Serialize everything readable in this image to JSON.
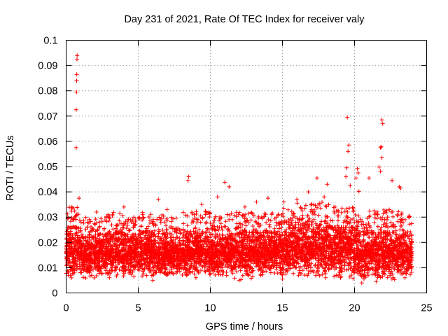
{
  "chart_data": {
    "type": "scatter",
    "title": "Day 231 of 2021, Rate Of TEC Index for receiver valy",
    "xlabel": "GPS time / hours",
    "ylabel": "ROTI / TECUs",
    "xlim": [
      0,
      25
    ],
    "ylim": [
      0,
      0.1
    ],
    "xticks": [
      0,
      5,
      10,
      15,
      20,
      25
    ],
    "yticks": [
      0,
      0.01,
      0.02,
      0.03,
      0.04,
      0.05,
      0.06,
      0.07,
      0.08,
      0.09,
      0.1
    ],
    "xtick_labels": [
      "0",
      "5",
      "10",
      "15",
      "20",
      "25"
    ],
    "ytick_labels": [
      "0",
      "0.01",
      "0.02",
      "0.03",
      "0.04",
      "0.05",
      "0.06",
      "0.07",
      "0.08",
      "0.09",
      "0.1"
    ],
    "grid": true,
    "marker": "+",
    "color": "#ff0000",
    "series": [
      {
        "name": "ROTI",
        "points": [
          [
            0.7,
            0.0575
          ],
          [
            0.7,
            0.0725
          ],
          [
            0.72,
            0.0795
          ],
          [
            0.73,
            0.084
          ],
          [
            0.74,
            0.0865
          ],
          [
            0.75,
            0.0925
          ],
          [
            0.76,
            0.094
          ],
          [
            0.9,
            0.0375
          ],
          [
            0.4,
            0.034
          ],
          [
            8.5,
            0.046
          ],
          [
            8.45,
            0.0445
          ],
          [
            11.0,
            0.0438
          ],
          [
            11.3,
            0.042
          ],
          [
            10.5,
            0.038
          ],
          [
            17.4,
            0.0455
          ],
          [
            18.1,
            0.043
          ],
          [
            19.5,
            0.0695
          ],
          [
            19.6,
            0.0585
          ],
          [
            19.55,
            0.056
          ],
          [
            19.45,
            0.0495
          ],
          [
            19.4,
            0.046
          ],
          [
            19.7,
            0.0425
          ],
          [
            20.2,
            0.0492
          ],
          [
            20.25,
            0.0475
          ],
          [
            20.1,
            0.0455
          ],
          [
            20.3,
            0.0402
          ],
          [
            21.9,
            0.0685
          ],
          [
            21.95,
            0.067
          ],
          [
            21.85,
            0.0578
          ],
          [
            21.8,
            0.0575
          ],
          [
            21.9,
            0.0535
          ],
          [
            21.7,
            0.0498
          ],
          [
            21.8,
            0.0482
          ],
          [
            21.0,
            0.0455
          ],
          [
            22.6,
            0.0445
          ],
          [
            23.1,
            0.042
          ],
          [
            23.2,
            0.0415
          ],
          [
            6.4,
            0.037
          ],
          [
            14.0,
            0.0375
          ],
          [
            15.1,
            0.036
          ],
          [
            16.0,
            0.037
          ],
          [
            13.2,
            0.036
          ],
          [
            4.0,
            0.034
          ],
          [
            2.1,
            0.032
          ],
          [
            7.0,
            0.033
          ],
          [
            12.4,
            0.034
          ],
          [
            9.4,
            0.035
          ],
          [
            5.3,
            0.031
          ],
          [
            17.9,
            0.038
          ],
          [
            16.8,
            0.04
          ],
          [
            0.3,
            0.007
          ],
          [
            3.0,
            0.006
          ],
          [
            6.0,
            0.005
          ],
          [
            9.0,
            0.006
          ],
          [
            12.0,
            0.005
          ],
          [
            15.0,
            0.0055
          ],
          [
            18.0,
            0.006
          ],
          [
            20.5,
            0.004
          ],
          [
            21.5,
            0.0045
          ],
          [
            23.5,
            0.006
          ]
        ],
        "bands": [
          [
            0.0,
            1.0,
            0.005,
            0.026,
            0.034
          ],
          [
            1.0,
            2.0,
            0.005,
            0.022,
            0.03
          ],
          [
            2.0,
            3.0,
            0.006,
            0.023,
            0.031
          ],
          [
            3.0,
            4.0,
            0.006,
            0.024,
            0.032
          ],
          [
            4.0,
            5.0,
            0.006,
            0.023,
            0.03
          ],
          [
            5.0,
            6.0,
            0.006,
            0.024,
            0.032
          ],
          [
            6.0,
            7.0,
            0.0055,
            0.023,
            0.031
          ],
          [
            7.0,
            8.0,
            0.006,
            0.022,
            0.03
          ],
          [
            8.0,
            9.0,
            0.006,
            0.023,
            0.032
          ],
          [
            9.0,
            10.0,
            0.006,
            0.024,
            0.033
          ],
          [
            10.0,
            11.0,
            0.006,
            0.023,
            0.031
          ],
          [
            11.0,
            12.0,
            0.0055,
            0.023,
            0.032
          ],
          [
            12.0,
            13.0,
            0.005,
            0.024,
            0.032
          ],
          [
            13.0,
            14.0,
            0.006,
            0.024,
            0.033
          ],
          [
            14.0,
            15.0,
            0.006,
            0.024,
            0.032
          ],
          [
            15.0,
            16.0,
            0.006,
            0.026,
            0.034
          ],
          [
            16.0,
            17.0,
            0.006,
            0.027,
            0.036
          ],
          [
            17.0,
            18.0,
            0.006,
            0.027,
            0.036
          ],
          [
            18.0,
            19.0,
            0.006,
            0.026,
            0.035
          ],
          [
            19.0,
            20.0,
            0.0055,
            0.026,
            0.034
          ],
          [
            20.0,
            21.0,
            0.0045,
            0.024,
            0.032
          ],
          [
            21.0,
            22.0,
            0.005,
            0.024,
            0.033
          ],
          [
            22.0,
            23.0,
            0.005,
            0.024,
            0.033
          ],
          [
            23.0,
            24.0,
            0.006,
            0.023,
            0.033
          ]
        ]
      }
    ]
  }
}
